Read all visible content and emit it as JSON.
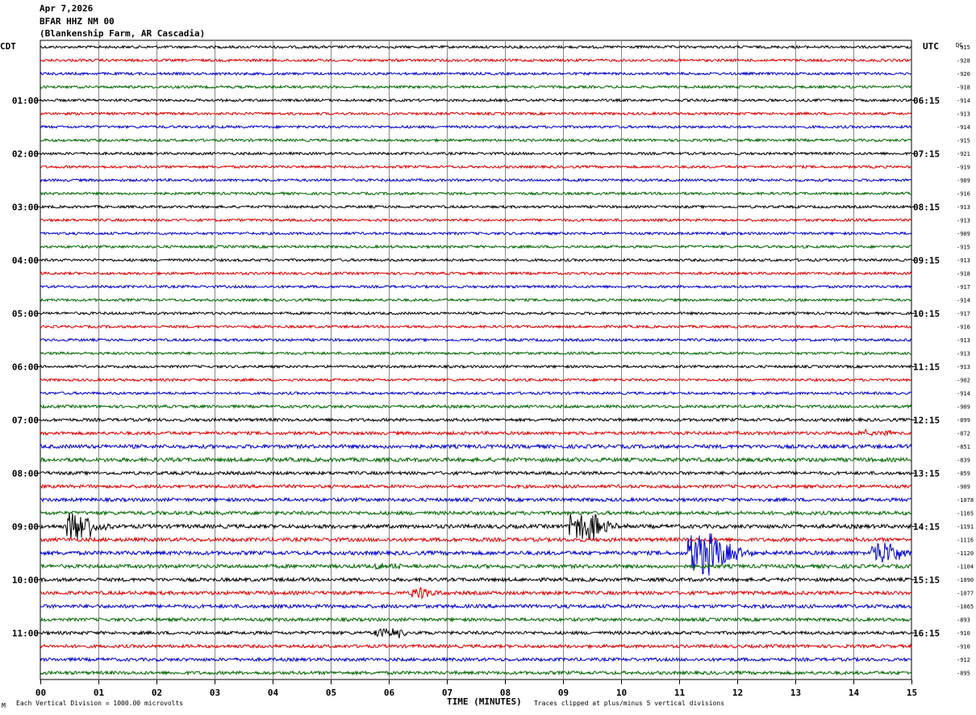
{
  "header": {
    "date": "Apr 7,2026",
    "station": "BFAR HHZ NM 00",
    "location": "(Blankenship Farm, AR Cascadia)"
  },
  "labels": {
    "left_tz": "CDT",
    "right_tz": "UTC",
    "dc": "DC"
  },
  "footer": {
    "scale": "Each Vertical Division = 1000.00 microvolts",
    "clip": "Traces clipped at plus/minus 5 vertical divisions",
    "corner": "M"
  },
  "chart_data": {
    "type": "line",
    "title": "Apr 7,2026 BFAR HHZ NM 00 (Blankenship Farm, AR Cascadia)",
    "xlabel": "TIME (MINUTES)",
    "xlim": [
      0,
      15
    ],
    "x_ticks": [
      "00",
      "01",
      "02",
      "03",
      "04",
      "05",
      "06",
      "07",
      "08",
      "09",
      "10",
      "11",
      "12",
      "13",
      "14",
      "15"
    ],
    "trace_colors": [
      "#000000",
      "#dd0000",
      "#0000cc",
      "#006600"
    ],
    "trace_count": 48,
    "left_hour_labels": [
      {
        "row": 4,
        "label": "01:00"
      },
      {
        "row": 8,
        "label": "02:00"
      },
      {
        "row": 12,
        "label": "03:00"
      },
      {
        "row": 16,
        "label": "04:00"
      },
      {
        "row": 20,
        "label": "05:00"
      },
      {
        "row": 24,
        "label": "06:00"
      },
      {
        "row": 28,
        "label": "07:00"
      },
      {
        "row": 32,
        "label": "08:00"
      },
      {
        "row": 36,
        "label": "09:00"
      },
      {
        "row": 40,
        "label": "10:00"
      },
      {
        "row": 44,
        "label": "11:00"
      }
    ],
    "right_hour_labels": [
      {
        "row": 4,
        "label": "06:15"
      },
      {
        "row": 8,
        "label": "07:15"
      },
      {
        "row": 12,
        "label": "08:15"
      },
      {
        "row": 16,
        "label": "09:15"
      },
      {
        "row": 20,
        "label": "10:15"
      },
      {
        "row": 24,
        "label": "11:15"
      },
      {
        "row": 28,
        "label": "12:15"
      },
      {
        "row": 32,
        "label": "13:15"
      },
      {
        "row": 36,
        "label": "14:15"
      },
      {
        "row": 40,
        "label": "15:15"
      },
      {
        "row": 44,
        "label": "16:15"
      }
    ],
    "dc_offsets": [
      "-915",
      "-928",
      "-920",
      "-918",
      "-914",
      "-913",
      "-914",
      "-915",
      "-921",
      "-919",
      "-909",
      "-916",
      "-913",
      "-913",
      "-909",
      "-915",
      "-913",
      "-918",
      "-917",
      "-914",
      "-917",
      "-916",
      "-913",
      "-913",
      "-913",
      "-902",
      "-914",
      "-909",
      "-899",
      "-872",
      "-851",
      "-839",
      "-859",
      "-909",
      "-1078",
      "-1165",
      "-1191",
      "-1116",
      "-1120",
      "-1104",
      "-1090",
      "-1077",
      "-1065",
      "-893",
      "-910",
      "-910",
      "-912",
      "-895"
    ],
    "noise_levels": [
      1.6,
      1.6,
      1.6,
      1.6,
      1.6,
      1.6,
      1.6,
      1.6,
      1.6,
      1.6,
      1.6,
      1.6,
      1.6,
      1.6,
      1.6,
      1.6,
      1.6,
      1.6,
      1.6,
      1.6,
      1.6,
      1.6,
      1.6,
      1.6,
      1.6,
      1.6,
      1.6,
      1.8,
      1.9,
      2.0,
      2.3,
      2.4,
      2.0,
      2.0,
      2.1,
      2.2,
      2.4,
      2.3,
      2.4,
      2.3,
      2.2,
      2.2,
      2.2,
      2.0,
      2.0,
      2.0,
      2.0,
      2.0
    ],
    "events": [
      {
        "row": 36,
        "t": 0.5,
        "amp": 18,
        "dur": 0.3,
        "tail": 0.7
      },
      {
        "row": 36,
        "t": 9.15,
        "amp": 16,
        "dur": 0.4,
        "tail": 0.8
      },
      {
        "row": 38,
        "t": 11.2,
        "amp": 26,
        "dur": 0.4,
        "tail": 1.2
      },
      {
        "row": 38,
        "t": 14.35,
        "amp": 14,
        "dur": 0.35,
        "tail": 0.6
      },
      {
        "row": 41,
        "t": 6.45,
        "amp": 7,
        "dur": 0.2,
        "tail": 0.4
      },
      {
        "row": 44,
        "t": 5.8,
        "amp": 5,
        "dur": 0.4,
        "tail": 0.6
      },
      {
        "row": 39,
        "t": 5.8,
        "amp": 3,
        "dur": 0.4,
        "tail": 0.4
      },
      {
        "row": 29,
        "t": 14.0,
        "amp": 3,
        "dur": 0.6,
        "tail": 0.6
      }
    ]
  }
}
